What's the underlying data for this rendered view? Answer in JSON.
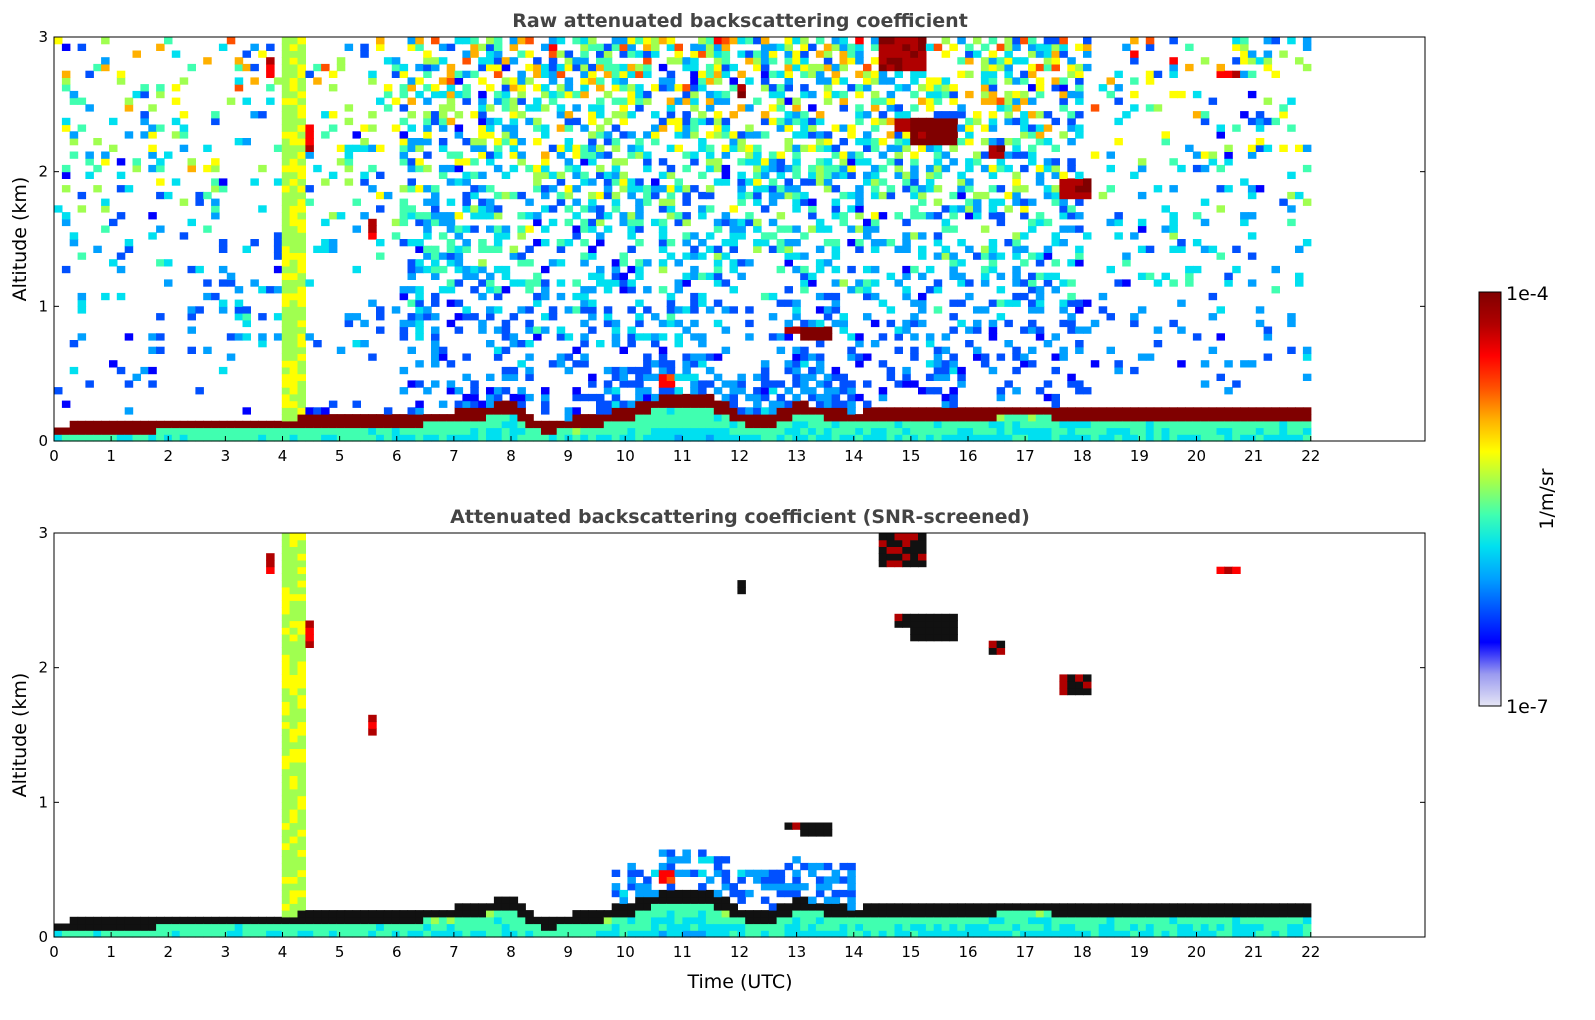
{
  "chart_data": [
    {
      "type": "heatmap",
      "title": "Raw attenuated backscattering coefficient",
      "xlabel": "",
      "ylabel": "Altitude (km)",
      "xlim": [
        0,
        24
      ],
      "ylim": [
        0,
        3
      ],
      "xticks": [
        "0",
        "1",
        "2",
        "3",
        "4",
        "5",
        "6",
        "7",
        "8",
        "9",
        "10",
        "11",
        "12",
        "13",
        "14",
        "15",
        "16",
        "17",
        "18",
        "19",
        "20",
        "21",
        "22"
      ],
      "yticks": [
        "0",
        "1",
        "2",
        "3"
      ],
      "data_end_hour": 22,
      "screened": false,
      "boundary_layer_km": [
        [
          0,
          0.08
        ],
        [
          1,
          0.1
        ],
        [
          2,
          0.13
        ],
        [
          3,
          0.13
        ],
        [
          4,
          0.13
        ],
        [
          5,
          0.15
        ],
        [
          6,
          0.17
        ],
        [
          7,
          0.18
        ],
        [
          7.5,
          0.22
        ],
        [
          8,
          0.25
        ],
        [
          8.5,
          0.12
        ],
        [
          9,
          0.13
        ],
        [
          10,
          0.2
        ],
        [
          10.5,
          0.28
        ],
        [
          11,
          0.32
        ],
        [
          11.5,
          0.3
        ],
        [
          12,
          0.18
        ],
        [
          12.5,
          0.15
        ],
        [
          13,
          0.25
        ],
        [
          13.5,
          0.22
        ],
        [
          14,
          0.18
        ],
        [
          15,
          0.22
        ],
        [
          16,
          0.22
        ],
        [
          17,
          0.23
        ],
        [
          18,
          0.22
        ],
        [
          19,
          0.2
        ],
        [
          20,
          0.2
        ],
        [
          21,
          0.22
        ],
        [
          22,
          0.22
        ]
      ],
      "clouds": [
        {
          "t0": 4.05,
          "t1": 4.35,
          "z0": 0.15,
          "z1": 3.0,
          "level": 0.6
        },
        {
          "t0": 13.0,
          "t1": 13.6,
          "z0": 0.75,
          "z1": 0.85,
          "level": 1.0
        },
        {
          "t0": 12.8,
          "t1": 13.0,
          "z0": 0.78,
          "z1": 0.86,
          "level": 0.95
        },
        {
          "t0": 15.0,
          "t1": 15.8,
          "z0": 2.22,
          "z1": 2.38,
          "level": 1.0
        },
        {
          "t0": 14.7,
          "t1": 15.0,
          "z0": 2.3,
          "z1": 2.42,
          "level": 0.95
        },
        {
          "t0": 16.3,
          "t1": 16.7,
          "z0": 2.08,
          "z1": 2.2,
          "level": 0.95
        },
        {
          "t0": 17.6,
          "t1": 18.1,
          "z0": 1.8,
          "z1": 1.95,
          "level": 0.95
        },
        {
          "t0": 5.45,
          "t1": 5.65,
          "z0": 1.5,
          "z1": 1.65,
          "level": 0.9
        },
        {
          "t0": 4.4,
          "t1": 4.6,
          "z0": 2.15,
          "z1": 2.35,
          "level": 0.9
        },
        {
          "t0": 14.5,
          "t1": 15.3,
          "z0": 2.75,
          "z1": 3.0,
          "level": 0.95
        },
        {
          "t0": 11.9,
          "t1": 12.1,
          "z0": 2.55,
          "z1": 2.65,
          "level": 0.95
        },
        {
          "t0": 20.3,
          "t1": 20.8,
          "z0": 2.68,
          "z1": 2.76,
          "level": 0.9
        },
        {
          "t0": 3.7,
          "t1": 3.9,
          "z0": 2.7,
          "z1": 2.85,
          "level": 0.9
        },
        {
          "t0": 10.6,
          "t1": 10.9,
          "z0": 0.4,
          "z1": 0.48,
          "level": 0.85
        }
      ]
    },
    {
      "type": "heatmap",
      "title": "Attenuated backscattering coefficient (SNR-screened)",
      "xlabel": "Time (UTC)",
      "ylabel": "Altitude (km)",
      "xlim": [
        0,
        24
      ],
      "ylim": [
        0,
        3
      ],
      "xticks": [
        "0",
        "1",
        "2",
        "3",
        "4",
        "5",
        "6",
        "7",
        "8",
        "9",
        "10",
        "11",
        "12",
        "13",
        "14",
        "15",
        "16",
        "17",
        "18",
        "19",
        "20",
        "21",
        "22"
      ],
      "yticks": [
        "0",
        "1",
        "2",
        "3"
      ],
      "data_end_hour": 22,
      "screened": true,
      "boundary_layer_km": [
        [
          0,
          0.08
        ],
        [
          1,
          0.1
        ],
        [
          2,
          0.13
        ],
        [
          3,
          0.13
        ],
        [
          4,
          0.13
        ],
        [
          5,
          0.15
        ],
        [
          6,
          0.17
        ],
        [
          7,
          0.18
        ],
        [
          7.5,
          0.22
        ],
        [
          8,
          0.25
        ],
        [
          8.5,
          0.12
        ],
        [
          9,
          0.13
        ],
        [
          10,
          0.2
        ],
        [
          10.5,
          0.28
        ],
        [
          11,
          0.32
        ],
        [
          11.5,
          0.3
        ],
        [
          12,
          0.18
        ],
        [
          12.5,
          0.15
        ],
        [
          13,
          0.25
        ],
        [
          13.5,
          0.22
        ],
        [
          14,
          0.18
        ],
        [
          15,
          0.22
        ],
        [
          16,
          0.22
        ],
        [
          17,
          0.23
        ],
        [
          18,
          0.22
        ],
        [
          19,
          0.2
        ],
        [
          20,
          0.2
        ],
        [
          21,
          0.22
        ],
        [
          22,
          0.22
        ]
      ],
      "clouds": [
        {
          "t0": 4.05,
          "t1": 4.35,
          "z0": 0.15,
          "z1": 3.0,
          "level": 0.6
        },
        {
          "t0": 13.0,
          "t1": 13.6,
          "z0": 0.75,
          "z1": 0.85,
          "level": 1.0
        },
        {
          "t0": 12.8,
          "t1": 13.0,
          "z0": 0.78,
          "z1": 0.86,
          "level": 0.95
        },
        {
          "t0": 15.0,
          "t1": 15.8,
          "z0": 2.22,
          "z1": 2.38,
          "level": 1.0
        },
        {
          "t0": 14.7,
          "t1": 15.0,
          "z0": 2.3,
          "z1": 2.42,
          "level": 0.95
        },
        {
          "t0": 16.3,
          "t1": 16.7,
          "z0": 2.08,
          "z1": 2.2,
          "level": 0.95
        },
        {
          "t0": 17.6,
          "t1": 18.1,
          "z0": 1.8,
          "z1": 1.95,
          "level": 0.95
        },
        {
          "t0": 5.45,
          "t1": 5.65,
          "z0": 1.5,
          "z1": 1.65,
          "level": 0.9
        },
        {
          "t0": 4.4,
          "t1": 4.6,
          "z0": 2.15,
          "z1": 2.35,
          "level": 0.9
        },
        {
          "t0": 14.5,
          "t1": 15.3,
          "z0": 2.75,
          "z1": 3.0,
          "level": 0.95
        },
        {
          "t0": 11.9,
          "t1": 12.1,
          "z0": 2.55,
          "z1": 2.65,
          "level": 0.95
        },
        {
          "t0": 20.3,
          "t1": 20.8,
          "z0": 2.68,
          "z1": 2.76,
          "level": 0.9
        },
        {
          "t0": 3.7,
          "t1": 3.9,
          "z0": 2.7,
          "z1": 2.85,
          "level": 0.9
        },
        {
          "t0": 10.6,
          "t1": 10.9,
          "z0": 0.4,
          "z1": 0.48,
          "level": 0.85
        }
      ]
    }
  ],
  "colorbar": {
    "max_label": "1e-4",
    "min_label": "1e-7",
    "unit_label": "1/m/sr",
    "colormap": [
      "#e6e6f5",
      "#9a9af0",
      "#0000ff",
      "#0050ff",
      "#00a0ff",
      "#00e0f0",
      "#40ffb0",
      "#a0ff50",
      "#ffff00",
      "#ffb000",
      "#ff5000",
      "#ff0000",
      "#b00000",
      "#800000"
    ]
  }
}
